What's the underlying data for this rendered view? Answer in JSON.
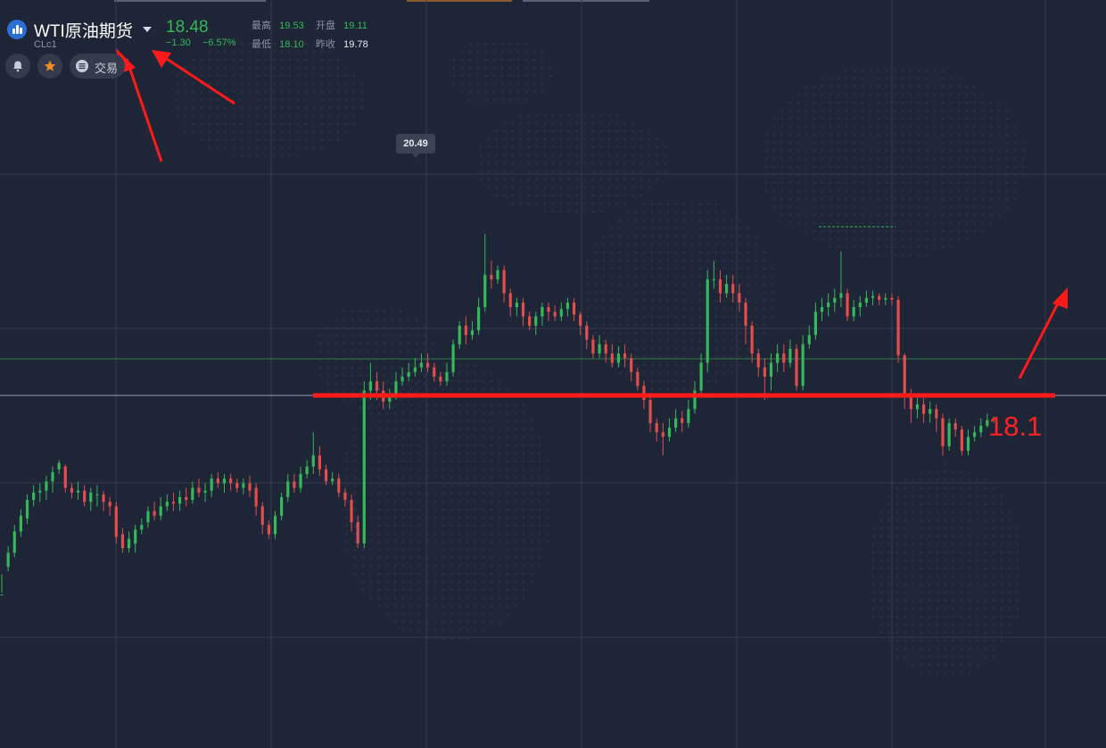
{
  "header": {
    "title": "WTI原油期货",
    "symbol": "CLc1",
    "last_price": "18.48",
    "change": "−1.30",
    "change_pct": "−6.57%",
    "high_label": "最高",
    "high_value": "19.53",
    "low_label": "最低",
    "low_value": "18.10",
    "open_label": "开盘",
    "open_value": "19.11",
    "prev_close_label": "昨收",
    "prev_close_value": "19.78"
  },
  "toolbar": {
    "alert_icon": "bell-icon",
    "favorite_icon": "star-icon",
    "trade_icon": "menu-icon",
    "trade_label": "交易"
  },
  "colors": {
    "background": "#1e2536",
    "up": "#35b85a",
    "down": "#e04e4e",
    "annotation": "#ff2222",
    "accent": "#2b6fd6"
  },
  "tooltip": {
    "text": "20.49"
  },
  "annotation": {
    "label": "18.1"
  },
  "chart_data": {
    "type": "candlestick",
    "y_range": [
      16.6,
      21.3
    ],
    "high_marker": 20.49,
    "current_price_line": 18.48,
    "support_line": 18.1,
    "grid": true,
    "candles": [
      [
        16.6,
        16.6,
        16.82,
        16.62
      ],
      [
        16.9,
        17.05,
        17.12,
        16.85
      ],
      [
        17.05,
        17.28,
        17.35,
        17.0
      ],
      [
        17.28,
        17.45,
        17.52,
        17.22
      ],
      [
        17.42,
        17.62,
        17.68,
        17.36
      ],
      [
        17.62,
        17.7,
        17.78,
        17.55
      ],
      [
        17.7,
        17.72,
        17.8,
        17.6
      ],
      [
        17.72,
        17.82,
        17.88,
        17.62
      ],
      [
        17.82,
        17.92,
        17.98,
        17.7
      ],
      [
        17.95,
        18.02,
        18.05,
        17.9
      ],
      [
        17.98,
        17.75,
        18.0,
        17.7
      ],
      [
        17.75,
        17.7,
        17.8,
        17.64
      ],
      [
        17.7,
        17.72,
        17.82,
        17.62
      ],
      [
        17.72,
        17.6,
        17.78,
        17.55
      ],
      [
        17.6,
        17.7,
        17.75,
        17.5
      ],
      [
        17.68,
        17.68,
        17.78,
        17.55
      ],
      [
        17.68,
        17.6,
        17.72,
        17.5
      ],
      [
        17.6,
        17.55,
        17.65,
        17.45
      ],
      [
        17.55,
        17.22,
        17.6,
        17.15
      ],
      [
        17.25,
        17.1,
        17.32,
        17.05
      ],
      [
        17.1,
        17.2,
        17.28,
        17.05
      ],
      [
        17.15,
        17.3,
        17.35,
        17.05
      ],
      [
        17.3,
        17.35,
        17.42,
        17.25
      ],
      [
        17.38,
        17.5,
        17.55,
        17.32
      ],
      [
        17.5,
        17.45,
        17.6,
        17.4
      ],
      [
        17.45,
        17.55,
        17.65,
        17.4
      ],
      [
        17.55,
        17.6,
        17.68,
        17.5
      ],
      [
        17.6,
        17.58,
        17.7,
        17.5
      ],
      [
        17.58,
        17.65,
        17.72,
        17.5
      ],
      [
        17.65,
        17.62,
        17.75,
        17.55
      ],
      [
        17.62,
        17.75,
        17.82,
        17.58
      ],
      [
        17.75,
        17.7,
        17.85,
        17.65
      ],
      [
        17.7,
        17.72,
        17.8,
        17.6
      ],
      [
        17.72,
        17.85,
        17.9,
        17.65
      ],
      [
        17.85,
        17.8,
        17.92,
        17.75
      ],
      [
        17.8,
        17.85,
        17.9,
        17.7
      ],
      [
        17.85,
        17.8,
        17.9,
        17.72
      ],
      [
        17.8,
        17.75,
        17.85,
        17.7
      ],
      [
        17.75,
        17.8,
        17.85,
        17.68
      ],
      [
        17.8,
        17.72,
        17.88,
        17.65
      ],
      [
        17.75,
        17.55,
        17.8,
        17.45
      ],
      [
        17.55,
        17.35,
        17.6,
        17.25
      ],
      [
        17.35,
        17.25,
        17.4,
        17.2
      ],
      [
        17.25,
        17.45,
        17.5,
        17.2
      ],
      [
        17.45,
        17.65,
        17.7,
        17.4
      ],
      [
        17.65,
        17.82,
        17.9,
        17.6
      ],
      [
        17.82,
        17.75,
        17.9,
        17.7
      ],
      [
        17.75,
        17.9,
        17.98,
        17.7
      ],
      [
        17.9,
        17.98,
        18.05,
        17.85
      ],
      [
        17.98,
        18.1,
        18.35,
        17.9
      ],
      [
        18.1,
        17.95,
        18.2,
        17.88
      ],
      [
        17.95,
        17.82,
        18.0,
        17.78
      ],
      [
        17.82,
        17.85,
        17.92,
        17.78
      ],
      [
        17.85,
        17.7,
        17.9,
        17.65
      ],
      [
        17.7,
        17.62,
        17.75,
        17.55
      ],
      [
        17.62,
        17.38,
        17.68,
        17.28
      ],
      [
        17.38,
        17.15,
        17.45,
        17.1
      ],
      [
        17.15,
        18.8,
        18.9,
        17.1
      ],
      [
        18.8,
        18.9,
        19.1,
        18.7
      ],
      [
        18.9,
        18.8,
        19.0,
        18.7
      ],
      [
        18.8,
        18.68,
        18.9,
        18.6
      ],
      [
        18.68,
        18.75,
        18.82,
        18.6
      ],
      [
        18.75,
        18.9,
        19.0,
        18.7
      ],
      [
        18.9,
        18.95,
        19.05,
        18.85
      ],
      [
        18.95,
        19.0,
        19.1,
        18.9
      ],
      [
        19.0,
        19.05,
        19.15,
        18.95
      ],
      [
        19.05,
        19.1,
        19.2,
        19.0
      ],
      [
        19.1,
        19.05,
        19.2,
        19.0
      ],
      [
        19.05,
        18.95,
        19.1,
        18.9
      ],
      [
        18.95,
        18.9,
        19.0,
        18.85
      ],
      [
        18.9,
        19.0,
        19.1,
        18.85
      ],
      [
        19.0,
        19.3,
        19.35,
        18.95
      ],
      [
        19.3,
        19.5,
        19.55,
        19.25
      ],
      [
        19.5,
        19.4,
        19.6,
        19.3
      ],
      [
        19.4,
        19.45,
        19.55,
        19.35
      ],
      [
        19.45,
        19.7,
        19.8,
        19.4
      ],
      [
        19.7,
        20.05,
        20.49,
        19.65
      ],
      [
        20.05,
        20.0,
        20.2,
        19.9
      ],
      [
        20.0,
        20.1,
        20.15,
        19.95
      ],
      [
        20.1,
        19.85,
        20.15,
        19.75
      ],
      [
        19.85,
        19.7,
        19.9,
        19.6
      ],
      [
        19.7,
        19.75,
        19.8,
        19.6
      ],
      [
        19.75,
        19.6,
        19.8,
        19.5
      ],
      [
        19.6,
        19.5,
        19.65,
        19.45
      ],
      [
        19.5,
        19.6,
        19.65,
        19.4
      ],
      [
        19.6,
        19.7,
        19.75,
        19.5
      ],
      [
        19.7,
        19.65,
        19.75,
        19.55
      ],
      [
        19.65,
        19.6,
        19.72,
        19.55
      ],
      [
        19.6,
        19.68,
        19.75,
        19.55
      ],
      [
        19.68,
        19.75,
        19.8,
        19.6
      ],
      [
        19.75,
        19.62,
        19.8,
        19.55
      ],
      [
        19.62,
        19.5,
        19.65,
        19.4
      ],
      [
        19.5,
        19.35,
        19.55,
        19.25
      ],
      [
        19.35,
        19.2,
        19.4,
        19.15
      ],
      [
        19.2,
        19.3,
        19.4,
        19.15
      ],
      [
        19.3,
        19.2,
        19.35,
        19.1
      ],
      [
        19.2,
        19.1,
        19.3,
        19.05
      ],
      [
        19.1,
        19.2,
        19.28,
        19.05
      ],
      [
        19.2,
        19.15,
        19.3,
        19.05
      ],
      [
        19.15,
        19.0,
        19.2,
        18.9
      ],
      [
        19.0,
        18.85,
        19.05,
        18.8
      ],
      [
        18.85,
        18.7,
        18.9,
        18.6
      ],
      [
        18.7,
        18.45,
        18.75,
        18.35
      ],
      [
        18.45,
        18.35,
        18.5,
        18.25
      ],
      [
        18.35,
        18.3,
        18.45,
        18.1
      ],
      [
        18.3,
        18.4,
        18.5,
        18.25
      ],
      [
        18.4,
        18.5,
        18.6,
        18.35
      ],
      [
        18.5,
        18.45,
        18.58,
        18.35
      ],
      [
        18.45,
        18.6,
        18.7,
        18.4
      ],
      [
        18.6,
        18.8,
        18.9,
        18.55
      ],
      [
        18.8,
        19.1,
        19.2,
        18.75
      ],
      [
        19.1,
        20.0,
        20.1,
        19.0
      ],
      [
        20.0,
        20.0,
        20.2,
        19.9
      ],
      [
        20.0,
        19.85,
        20.1,
        19.75
      ],
      [
        19.85,
        19.95,
        20.05,
        19.8
      ],
      [
        19.95,
        19.85,
        20.05,
        19.75
      ],
      [
        19.85,
        19.75,
        19.95,
        19.65
      ],
      [
        19.75,
        19.5,
        19.8,
        19.3
      ],
      [
        19.5,
        19.2,
        19.55,
        19.1
      ],
      [
        19.2,
        19.05,
        19.25,
        18.95
      ],
      [
        19.05,
        18.95,
        19.15,
        18.7
      ],
      [
        18.95,
        19.1,
        19.2,
        18.8
      ],
      [
        19.1,
        19.2,
        19.3,
        19.0
      ],
      [
        19.2,
        19.1,
        19.3,
        19.0
      ],
      [
        19.1,
        19.25,
        19.35,
        19.05
      ],
      [
        19.25,
        18.85,
        19.3,
        18.8
      ],
      [
        18.85,
        19.3,
        19.4,
        18.8
      ],
      [
        19.3,
        19.4,
        19.5,
        19.25
      ],
      [
        19.4,
        19.65,
        19.75,
        19.35
      ],
      [
        19.65,
        19.7,
        19.8,
        19.55
      ],
      [
        19.7,
        19.75,
        19.85,
        19.6
      ],
      [
        19.75,
        19.8,
        19.9,
        19.65
      ],
      [
        19.8,
        19.85,
        20.3,
        19.7
      ],
      [
        19.85,
        19.6,
        19.9,
        19.55
      ],
      [
        19.6,
        19.7,
        19.78,
        19.55
      ],
      [
        19.7,
        19.75,
        19.82,
        19.6
      ],
      [
        19.75,
        19.8,
        19.88,
        19.7
      ],
      [
        19.8,
        19.82,
        19.88,
        19.72
      ],
      [
        19.82,
        19.78,
        19.85,
        19.72
      ],
      [
        19.78,
        19.8,
        19.85,
        19.72
      ],
      [
        19.8,
        19.78,
        19.85,
        19.72
      ],
      [
        19.78,
        19.18,
        19.82,
        19.1
      ],
      [
        19.18,
        18.75,
        19.2,
        18.6
      ],
      [
        18.75,
        18.6,
        18.82,
        18.45
      ],
      [
        18.6,
        18.65,
        18.72,
        18.5
      ],
      [
        18.65,
        18.55,
        18.72,
        18.45
      ],
      [
        18.55,
        18.6,
        18.68,
        18.45
      ],
      [
        18.6,
        18.5,
        18.65,
        18.35
      ],
      [
        18.5,
        18.2,
        18.55,
        18.1
      ],
      [
        18.2,
        18.45,
        18.5,
        18.15
      ],
      [
        18.45,
        18.38,
        18.5,
        18.3
      ],
      [
        18.38,
        18.15,
        18.42,
        18.1
      ],
      [
        18.15,
        18.3,
        18.38,
        18.1
      ],
      [
        18.3,
        18.35,
        18.42,
        18.25
      ],
      [
        18.35,
        18.42,
        18.5,
        18.3
      ],
      [
        18.42,
        18.48,
        18.55,
        18.4
      ],
      [
        18.48,
        18.5,
        18.52,
        18.45
      ]
    ]
  }
}
